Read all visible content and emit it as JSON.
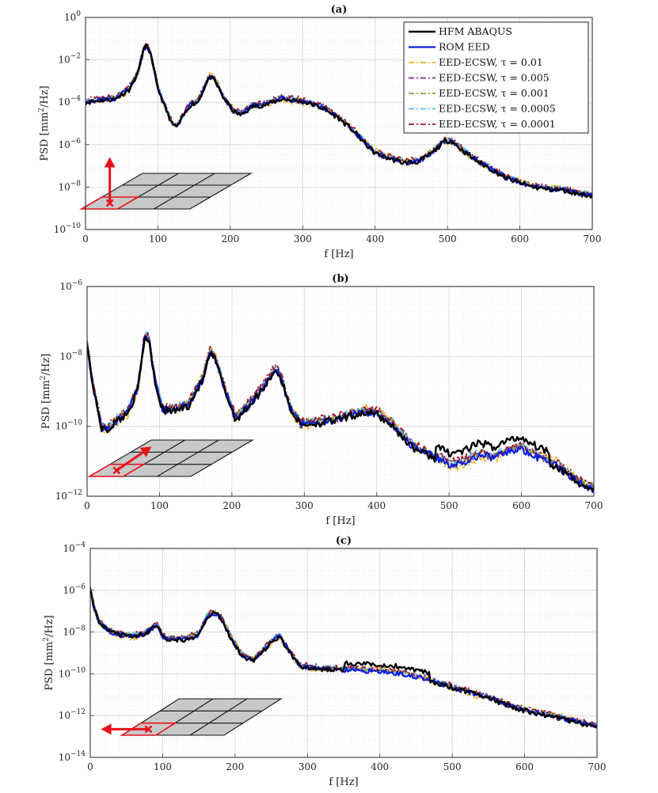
{
  "chart_data": [
    {
      "type": "line",
      "panel": "a",
      "title": "(a)",
      "xlabel": "f [Hz]",
      "ylabel": "PSD [mm²/Hz]",
      "xlim": [
        0,
        700
      ],
      "ylim_exp": [
        -10,
        0
      ],
      "xticks": [
        0,
        100,
        200,
        300,
        400,
        500,
        600,
        700
      ],
      "yticks_exp": [
        -10,
        -8,
        -6,
        -4,
        -2,
        0
      ],
      "ytick_labels": [
        "10−10",
        "10−8",
        "10−6",
        "10−4",
        "10−2",
        "100"
      ],
      "legend_position": "top-right",
      "arrow_direction": "up",
      "curve_points": [
        [
          0,
          -3.95
        ],
        [
          20,
          -3.85
        ],
        [
          40,
          -3.8
        ],
        [
          60,
          -3.35
        ],
        [
          72,
          -2.6
        ],
        [
          80,
          -1.5
        ],
        [
          85,
          -1.25
        ],
        [
          90,
          -1.7
        ],
        [
          100,
          -3.3
        ],
        [
          110,
          -4.2
        ],
        [
          120,
          -5.0
        ],
        [
          127,
          -5.1
        ],
        [
          135,
          -4.6
        ],
        [
          145,
          -4.05
        ],
        [
          155,
          -3.95
        ],
        [
          165,
          -3.2
        ],
        [
          172,
          -2.75
        ],
        [
          180,
          -3.0
        ],
        [
          190,
          -3.7
        ],
        [
          205,
          -4.4
        ],
        [
          215,
          -4.55
        ],
        [
          230,
          -4.15
        ],
        [
          250,
          -4.05
        ],
        [
          270,
          -3.8
        ],
        [
          290,
          -3.85
        ],
        [
          310,
          -4.0
        ],
        [
          330,
          -4.25
        ],
        [
          350,
          -4.7
        ],
        [
          370,
          -5.3
        ],
        [
          385,
          -5.85
        ],
        [
          400,
          -6.35
        ],
        [
          420,
          -6.6
        ],
        [
          440,
          -6.8
        ],
        [
          460,
          -6.75
        ],
        [
          480,
          -6.3
        ],
        [
          495,
          -5.8
        ],
        [
          505,
          -5.75
        ],
        [
          520,
          -6.2
        ],
        [
          540,
          -6.7
        ],
        [
          560,
          -7.1
        ],
        [
          580,
          -7.5
        ],
        [
          600,
          -7.75
        ],
        [
          620,
          -7.95
        ],
        [
          640,
          -8.05
        ],
        [
          660,
          -8.1
        ],
        [
          680,
          -8.25
        ],
        [
          700,
          -8.35
        ]
      ]
    },
    {
      "type": "line",
      "panel": "b",
      "title": "(b)",
      "xlabel": "f [Hz]",
      "ylabel": "PSD [mm²/Hz]",
      "xlim": [
        0,
        700
      ],
      "ylim_exp": [
        -12,
        -6
      ],
      "xticks": [
        0,
        100,
        200,
        300,
        400,
        500,
        600,
        700
      ],
      "yticks_exp": [
        -12,
        -10,
        -8,
        -6
      ],
      "ytick_labels": [
        "10−12",
        "10−10",
        "10−8",
        "10−6"
      ],
      "arrow_direction": "diagonal",
      "curve_points": [
        [
          0,
          -7.5
        ],
        [
          5,
          -8.4
        ],
        [
          12,
          -9.2
        ],
        [
          20,
          -10.0
        ],
        [
          28,
          -10.05
        ],
        [
          40,
          -9.8
        ],
        [
          55,
          -9.6
        ],
        [
          70,
          -8.9
        ],
        [
          80,
          -7.35
        ],
        [
          86,
          -7.55
        ],
        [
          95,
          -8.8
        ],
        [
          105,
          -9.5
        ],
        [
          120,
          -9.5
        ],
        [
          140,
          -9.35
        ],
        [
          160,
          -8.6
        ],
        [
          170,
          -7.85
        ],
        [
          178,
          -8.1
        ],
        [
          190,
          -8.9
        ],
        [
          205,
          -9.75
        ],
        [
          215,
          -9.55
        ],
        [
          230,
          -9.2
        ],
        [
          245,
          -8.8
        ],
        [
          260,
          -8.3
        ],
        [
          268,
          -8.6
        ],
        [
          280,
          -9.4
        ],
        [
          295,
          -9.9
        ],
        [
          320,
          -9.85
        ],
        [
          350,
          -9.75
        ],
        [
          380,
          -9.55
        ],
        [
          400,
          -9.6
        ],
        [
          420,
          -9.9
        ],
        [
          450,
          -10.55
        ],
        [
          480,
          -10.85
        ],
        [
          500,
          -11.05
        ],
        [
          520,
          -11.0
        ],
        [
          545,
          -10.75
        ],
        [
          560,
          -10.9
        ],
        [
          580,
          -10.7
        ],
        [
          600,
          -10.6
        ],
        [
          620,
          -10.85
        ],
        [
          650,
          -11.1
        ],
        [
          680,
          -11.6
        ],
        [
          700,
          -11.75
        ]
      ]
    },
    {
      "type": "line",
      "panel": "c",
      "title": "(c)",
      "xlabel": "f [Hz]",
      "ylabel": "PSD [mm²/Hz]",
      "xlim": [
        0,
        700
      ],
      "ylim_exp": [
        -14,
        -4
      ],
      "xticks": [
        0,
        100,
        200,
        300,
        400,
        500,
        600,
        700
      ],
      "yticks_exp": [
        -14,
        -12,
        -10,
        -8,
        -6,
        -4
      ],
      "ytick_labels": [
        "10−14",
        "10−12",
        "10−10",
        "10−8",
        "10−6",
        "10−4"
      ],
      "arrow_direction": "left",
      "curve_points": [
        [
          0,
          -5.8
        ],
        [
          5,
          -6.8
        ],
        [
          12,
          -7.5
        ],
        [
          25,
          -7.9
        ],
        [
          40,
          -8.1
        ],
        [
          60,
          -8.15
        ],
        [
          75,
          -8.05
        ],
        [
          85,
          -7.8
        ],
        [
          92,
          -7.6
        ],
        [
          100,
          -8.2
        ],
        [
          110,
          -8.3
        ],
        [
          130,
          -8.3
        ],
        [
          150,
          -8.1
        ],
        [
          162,
          -7.2
        ],
        [
          170,
          -7.05
        ],
        [
          180,
          -7.25
        ],
        [
          195,
          -8.3
        ],
        [
          210,
          -9.1
        ],
        [
          225,
          -9.3
        ],
        [
          240,
          -8.8
        ],
        [
          255,
          -8.3
        ],
        [
          262,
          -8.2
        ],
        [
          275,
          -8.9
        ],
        [
          290,
          -9.6
        ],
        [
          310,
          -9.7
        ],
        [
          340,
          -9.75
        ],
        [
          370,
          -9.8
        ],
        [
          400,
          -9.85
        ],
        [
          430,
          -9.95
        ],
        [
          460,
          -10.2
        ],
        [
          490,
          -10.5
        ],
        [
          520,
          -10.8
        ],
        [
          550,
          -11.1
        ],
        [
          580,
          -11.5
        ],
        [
          610,
          -11.8
        ],
        [
          640,
          -12.0
        ],
        [
          670,
          -12.25
        ],
        [
          700,
          -12.5
        ]
      ]
    }
  ],
  "legend": [
    {
      "label": "HFM ABAQUS",
      "tau": "",
      "color": "#000000",
      "dash": "solid",
      "width": 2.4
    },
    {
      "label": "ROM EED",
      "tau": "",
      "color": "#0a1fe6",
      "dash": "solid",
      "width": 2.2
    },
    {
      "label": "EED-ECSW, ",
      "tau": "τ = 0.01",
      "color": "#edb120",
      "dash": "dashdot",
      "width": 1.8
    },
    {
      "label": "EED-ECSW, ",
      "tau": "τ = 0.005",
      "color": "#7e2f8e",
      "dash": "dashdot",
      "width": 1.8
    },
    {
      "label": "EED-ECSW, ",
      "tau": "τ = 0.001",
      "color": "#77ac30",
      "dash": "dashdot",
      "width": 1.8
    },
    {
      "label": "EED-ECSW, ",
      "tau": "τ = 0.0005",
      "color": "#4dbeee",
      "dash": "dashdot",
      "width": 1.8
    },
    {
      "label": "EED-ECSW, ",
      "tau": "τ = 0.0001",
      "color": "#a2142f",
      "dash": "dashdot",
      "width": 1.8
    }
  ]
}
